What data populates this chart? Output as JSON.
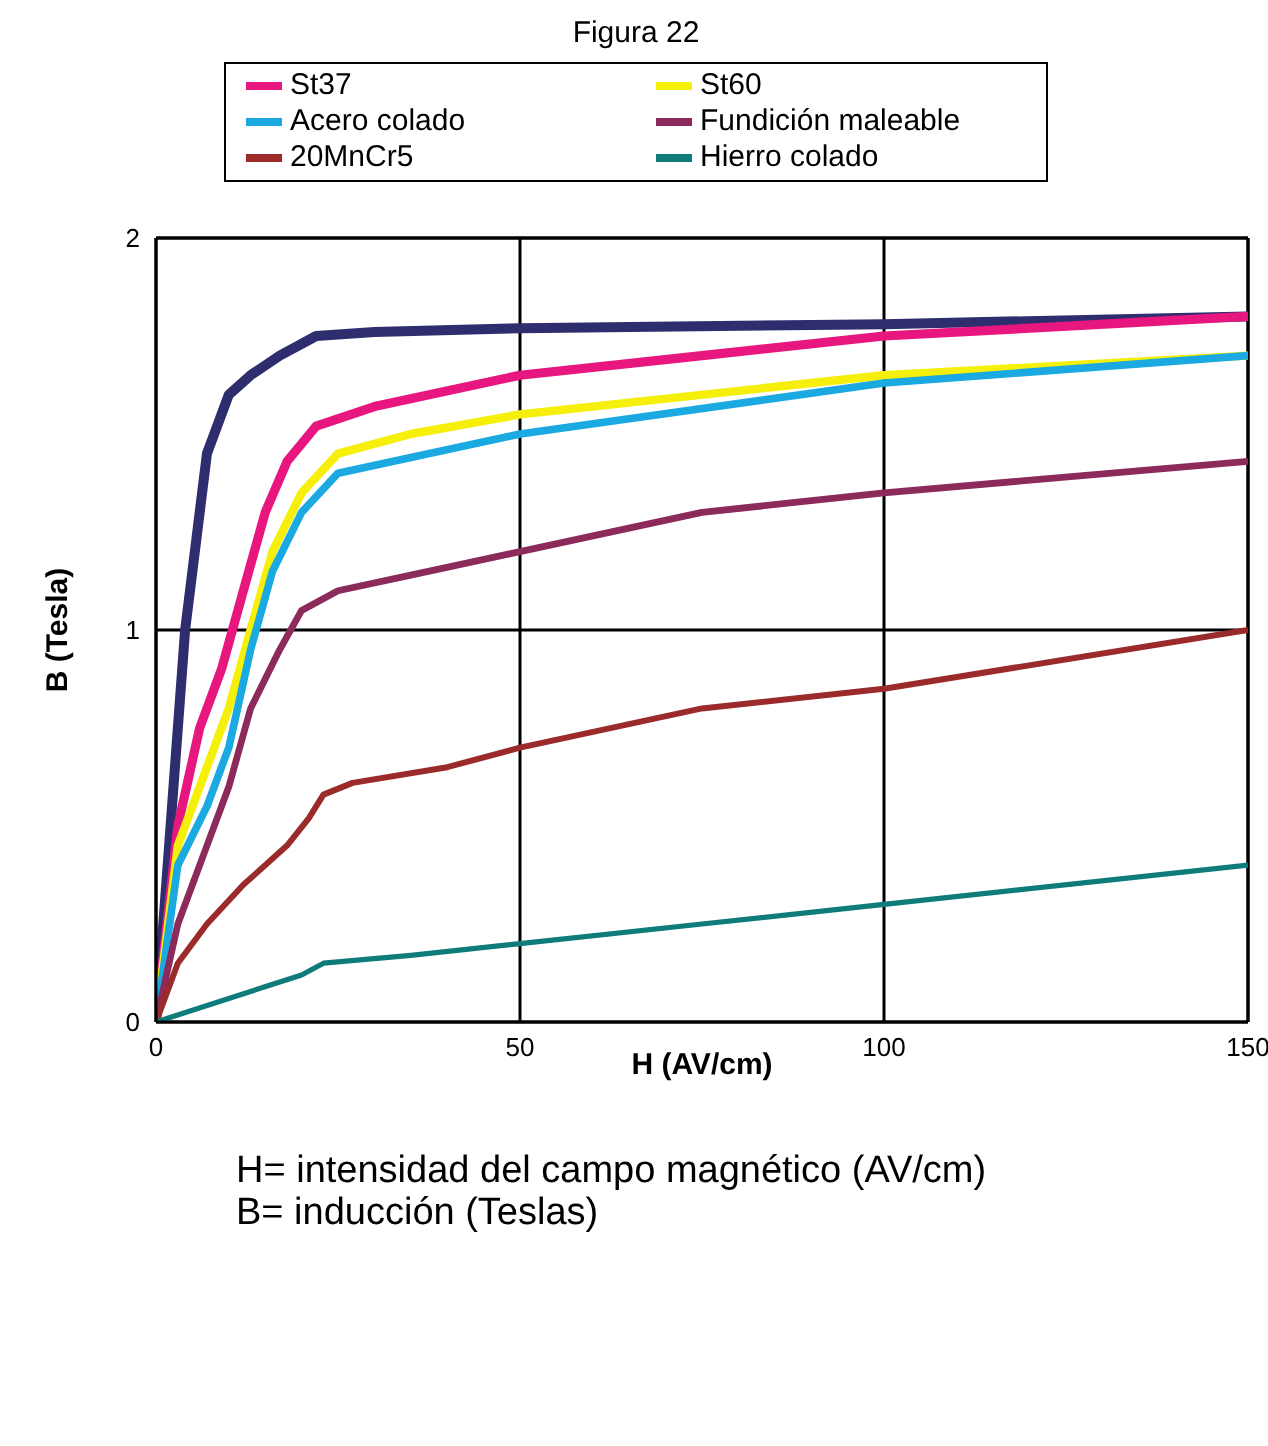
{
  "chart_data": {
    "type": "line",
    "title": "Figura 22",
    "xlabel": "H (AV/cm)",
    "ylabel": "B (Tesla)",
    "annotations": [
      "H= intensidad del campo magnético (AV/cm)",
      "B= inducción (Teslas)"
    ],
    "xlim": [
      0,
      150
    ],
    "xticks": [
      0,
      50,
      100,
      150
    ],
    "ylim": [
      0,
      2
    ],
    "yticks": [
      0,
      1,
      2
    ],
    "grid": true,
    "legend": "top",
    "series": [
      {
        "color": "#2e2d6e",
        "x": [
          0,
          2,
          4,
          7,
          10,
          13,
          17,
          22,
          30,
          50,
          100,
          150
        ],
        "values": [
          0,
          0.5,
          1.0,
          1.45,
          1.6,
          1.65,
          1.7,
          1.75,
          1.76,
          1.77,
          1.78,
          1.8
        ]
      },
      {
        "name": "St37",
        "color": "#e8177f",
        "x": [
          0,
          3,
          6,
          9,
          12,
          15,
          18,
          22,
          30,
          50,
          75,
          100,
          150
        ],
        "values": [
          0,
          0.5,
          0.75,
          0.9,
          1.1,
          1.3,
          1.43,
          1.52,
          1.57,
          1.65,
          1.7,
          1.75,
          1.8
        ]
      },
      {
        "name": "St60",
        "color": "#f5ef0a",
        "x": [
          0,
          3,
          7,
          10,
          13,
          16,
          20,
          25,
          35,
          50,
          100,
          150
        ],
        "values": [
          0,
          0.45,
          0.65,
          0.8,
          1.0,
          1.2,
          1.35,
          1.45,
          1.5,
          1.55,
          1.65,
          1.7
        ]
      },
      {
        "name": "Acero colado",
        "color": "#1aa9e0",
        "x": [
          0,
          3,
          7,
          10,
          13,
          16,
          20,
          25,
          35,
          50,
          100,
          150
        ],
        "values": [
          0,
          0.4,
          0.55,
          0.7,
          0.95,
          1.15,
          1.3,
          1.4,
          1.44,
          1.5,
          1.63,
          1.7
        ]
      },
      {
        "name": "Fundición maleable",
        "color": "#8b2a5b",
        "x": [
          0,
          3,
          7,
          10,
          13,
          17,
          20,
          25,
          35,
          50,
          75,
          100,
          150
        ],
        "values": [
          0,
          0.25,
          0.45,
          0.6,
          0.8,
          0.95,
          1.05,
          1.1,
          1.14,
          1.2,
          1.3,
          1.35,
          1.43
        ]
      },
      {
        "name": "20MnCr5",
        "color": "#9b2a2a",
        "x": [
          0,
          3,
          7,
          12,
          18,
          21,
          23,
          27,
          40,
          50,
          75,
          100,
          150
        ],
        "values": [
          0,
          0.15,
          0.25,
          0.35,
          0.45,
          0.52,
          0.58,
          0.61,
          0.65,
          0.7,
          0.8,
          0.85,
          1.0
        ]
      },
      {
        "name": "Hierro colado",
        "color": "#0e7c7b",
        "x": [
          0,
          10,
          20,
          23,
          35,
          50,
          75,
          100,
          150
        ],
        "values": [
          0,
          0.06,
          0.12,
          0.15,
          0.17,
          0.2,
          0.25,
          0.3,
          0.4
        ]
      }
    ]
  }
}
